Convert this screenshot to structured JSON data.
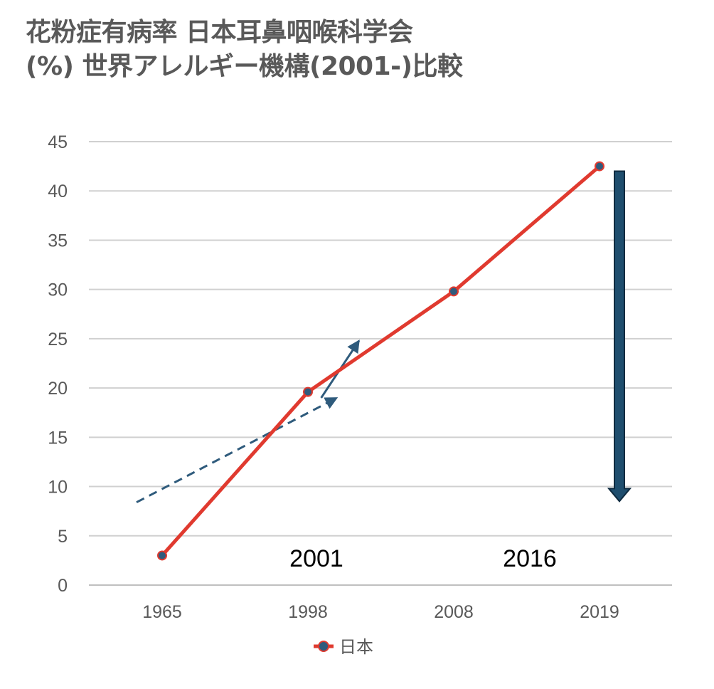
{
  "title": {
    "line1": "花粉症有病率 日本耳鼻咽喉科学会",
    "line2": "(%) 世界アレルギー機構(2001-)比較"
  },
  "chart_data": {
    "type": "line",
    "categories": [
      "1965",
      "1998",
      "2008",
      "2019"
    ],
    "series": [
      {
        "name": "日本",
        "values": [
          3,
          19.6,
          29.8,
          42.5
        ],
        "color": "#e03a2f",
        "marker_color": "#2f5b7c"
      }
    ],
    "world_allergy_organization_trend": {
      "color": "#2f5b7c",
      "dashed": {
        "from": [
          1965,
          8.4
        ],
        "to": [
          2001,
          19
        ]
      },
      "solid": {
        "from": [
          2001,
          19
        ],
        "to": [
          2016,
          24.8
        ]
      }
    },
    "decline_arrow": {
      "color": "#1f4e6e",
      "from_value": 42,
      "to_value": 8.5
    },
    "annotations": [
      "2001",
      "2016"
    ],
    "yticks": [
      0,
      5,
      10,
      15,
      20,
      25,
      30,
      35,
      40,
      45
    ],
    "ylim": [
      0,
      45
    ],
    "grid": true,
    "legend": "bottom"
  }
}
